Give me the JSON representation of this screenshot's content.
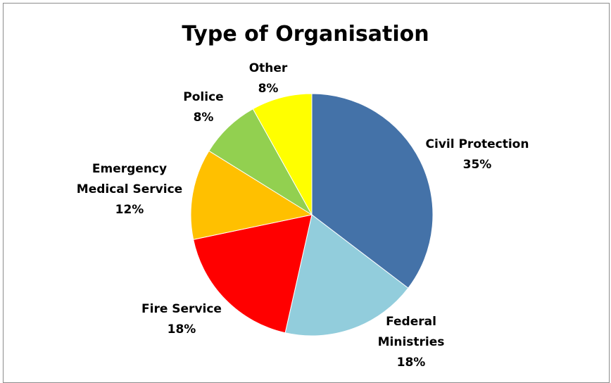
{
  "chart_data": {
    "type": "pie",
    "title": "Type of Organisation",
    "start_angle_deg": 0,
    "direction": "clockwise",
    "slices": [
      {
        "label": [
          "Civil Protection"
        ],
        "display_value": "35%",
        "value": 35,
        "color": "#4472A8"
      },
      {
        "label": [
          "Federal",
          "Ministries"
        ],
        "display_value": "18%",
        "value": 18,
        "color": "#92CDDC"
      },
      {
        "label": [
          "Fire Service"
        ],
        "display_value": "18%",
        "value": 18,
        "color": "#FF0000"
      },
      {
        "label": [
          "Emergency",
          "Medical Service"
        ],
        "display_value": "12%",
        "value": 12,
        "color": "#FFC000"
      },
      {
        "label": [
          "Police"
        ],
        "display_value": "8%",
        "value": 8,
        "color": "#92D050"
      },
      {
        "label": [
          "Other"
        ],
        "display_value": "8%",
        "value": 8,
        "color": "#FFFF00"
      }
    ]
  }
}
